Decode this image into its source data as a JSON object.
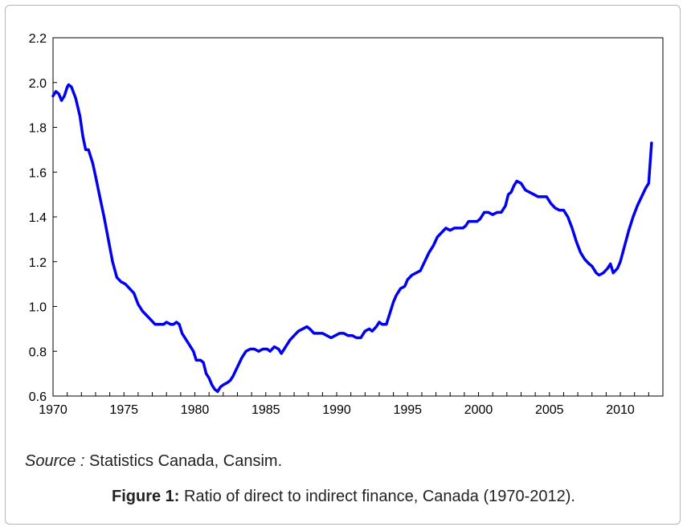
{
  "chart_data": {
    "type": "line",
    "title": "",
    "xlabel": "",
    "ylabel": "",
    "xlim": [
      1970,
      2013
    ],
    "ylim": [
      0.6,
      2.2
    ],
    "x_ticks": [
      1970,
      1975,
      1980,
      1985,
      1990,
      1995,
      2000,
      2005,
      2010
    ],
    "y_ticks": [
      "0.6",
      "0.8",
      "1.0",
      "1.2",
      "1.4",
      "1.6",
      "1.8",
      "2.0",
      "2.2"
    ],
    "grid": false,
    "legend": "none",
    "series": [
      {
        "color": "#0000ee",
        "points": [
          [
            1970.0,
            1.94
          ],
          [
            1970.2,
            1.96
          ],
          [
            1970.4,
            1.95
          ],
          [
            1970.6,
            1.92
          ],
          [
            1970.8,
            1.94
          ],
          [
            1971.0,
            1.98
          ],
          [
            1971.1,
            1.99
          ],
          [
            1971.3,
            1.98
          ],
          [
            1971.6,
            1.93
          ],
          [
            1971.9,
            1.85
          ],
          [
            1972.1,
            1.76
          ],
          [
            1972.3,
            1.7
          ],
          [
            1972.5,
            1.7
          ],
          [
            1972.8,
            1.64
          ],
          [
            1973.0,
            1.58
          ],
          [
            1973.3,
            1.49
          ],
          [
            1973.6,
            1.4
          ],
          [
            1973.9,
            1.3
          ],
          [
            1974.2,
            1.2
          ],
          [
            1974.5,
            1.13
          ],
          [
            1974.8,
            1.11
          ],
          [
            1975.1,
            1.1
          ],
          [
            1975.4,
            1.08
          ],
          [
            1975.7,
            1.06
          ],
          [
            1976.0,
            1.01
          ],
          [
            1976.3,
            0.98
          ],
          [
            1976.6,
            0.96
          ],
          [
            1976.9,
            0.94
          ],
          [
            1977.2,
            0.92
          ],
          [
            1977.5,
            0.92
          ],
          [
            1977.8,
            0.92
          ],
          [
            1978.0,
            0.93
          ],
          [
            1978.3,
            0.92
          ],
          [
            1978.5,
            0.92
          ],
          [
            1978.7,
            0.93
          ],
          [
            1978.9,
            0.92
          ],
          [
            1979.1,
            0.88
          ],
          [
            1979.4,
            0.85
          ],
          [
            1979.7,
            0.82
          ],
          [
            1979.9,
            0.8
          ],
          [
            1980.1,
            0.76
          ],
          [
            1980.4,
            0.76
          ],
          [
            1980.6,
            0.75
          ],
          [
            1980.8,
            0.7
          ],
          [
            1981.0,
            0.68
          ],
          [
            1981.2,
            0.65
          ],
          [
            1981.4,
            0.63
          ],
          [
            1981.6,
            0.62
          ],
          [
            1981.8,
            0.64
          ],
          [
            1982.0,
            0.65
          ],
          [
            1982.3,
            0.66
          ],
          [
            1982.5,
            0.67
          ],
          [
            1982.7,
            0.69
          ],
          [
            1983.0,
            0.73
          ],
          [
            1983.3,
            0.77
          ],
          [
            1983.6,
            0.8
          ],
          [
            1983.9,
            0.81
          ],
          [
            1984.2,
            0.81
          ],
          [
            1984.5,
            0.8
          ],
          [
            1984.8,
            0.81
          ],
          [
            1985.1,
            0.81
          ],
          [
            1985.3,
            0.8
          ],
          [
            1985.6,
            0.82
          ],
          [
            1985.9,
            0.81
          ],
          [
            1986.1,
            0.79
          ],
          [
            1986.4,
            0.82
          ],
          [
            1986.7,
            0.85
          ],
          [
            1987.0,
            0.87
          ],
          [
            1987.3,
            0.89
          ],
          [
            1987.6,
            0.9
          ],
          [
            1987.9,
            0.91
          ],
          [
            1988.1,
            0.9
          ],
          [
            1988.4,
            0.88
          ],
          [
            1988.7,
            0.88
          ],
          [
            1989.0,
            0.88
          ],
          [
            1989.3,
            0.87
          ],
          [
            1989.6,
            0.86
          ],
          [
            1989.9,
            0.87
          ],
          [
            1990.2,
            0.88
          ],
          [
            1990.5,
            0.88
          ],
          [
            1990.8,
            0.87
          ],
          [
            1991.1,
            0.87
          ],
          [
            1991.4,
            0.86
          ],
          [
            1991.7,
            0.86
          ],
          [
            1992.0,
            0.89
          ],
          [
            1992.3,
            0.9
          ],
          [
            1992.5,
            0.89
          ],
          [
            1992.8,
            0.91
          ],
          [
            1993.0,
            0.93
          ],
          [
            1993.2,
            0.92
          ],
          [
            1993.5,
            0.92
          ],
          [
            1993.8,
            0.98
          ],
          [
            1994.0,
            1.02
          ],
          [
            1994.2,
            1.05
          ],
          [
            1994.5,
            1.08
          ],
          [
            1994.8,
            1.09
          ],
          [
            1995.0,
            1.12
          ],
          [
            1995.3,
            1.14
          ],
          [
            1995.6,
            1.15
          ],
          [
            1995.9,
            1.16
          ],
          [
            1996.2,
            1.2
          ],
          [
            1996.5,
            1.24
          ],
          [
            1996.8,
            1.27
          ],
          [
            1997.1,
            1.31
          ],
          [
            1997.4,
            1.33
          ],
          [
            1997.7,
            1.35
          ],
          [
            1998.0,
            1.34
          ],
          [
            1998.3,
            1.35
          ],
          [
            1998.6,
            1.35
          ],
          [
            1998.9,
            1.35
          ],
          [
            1999.1,
            1.36
          ],
          [
            1999.3,
            1.38
          ],
          [
            1999.6,
            1.38
          ],
          [
            1999.9,
            1.38
          ],
          [
            2000.1,
            1.39
          ],
          [
            2000.4,
            1.42
          ],
          [
            2000.7,
            1.42
          ],
          [
            2001.0,
            1.41
          ],
          [
            2001.3,
            1.42
          ],
          [
            2001.6,
            1.42
          ],
          [
            2001.9,
            1.45
          ],
          [
            2002.1,
            1.5
          ],
          [
            2002.3,
            1.51
          ],
          [
            2002.5,
            1.54
          ],
          [
            2002.7,
            1.56
          ],
          [
            2003.0,
            1.55
          ],
          [
            2003.3,
            1.52
          ],
          [
            2003.6,
            1.51
          ],
          [
            2003.9,
            1.5
          ],
          [
            2004.2,
            1.49
          ],
          [
            2004.5,
            1.49
          ],
          [
            2004.8,
            1.49
          ],
          [
            2005.1,
            1.46
          ],
          [
            2005.4,
            1.44
          ],
          [
            2005.7,
            1.43
          ],
          [
            2006.0,
            1.43
          ],
          [
            2006.3,
            1.4
          ],
          [
            2006.6,
            1.35
          ],
          [
            2006.9,
            1.29
          ],
          [
            2007.2,
            1.24
          ],
          [
            2007.5,
            1.21
          ],
          [
            2007.8,
            1.19
          ],
          [
            2008.0,
            1.18
          ],
          [
            2008.3,
            1.15
          ],
          [
            2008.5,
            1.14
          ],
          [
            2008.8,
            1.15
          ],
          [
            2009.1,
            1.17
          ],
          [
            2009.3,
            1.19
          ],
          [
            2009.5,
            1.15
          ],
          [
            2009.8,
            1.17
          ],
          [
            2010.0,
            1.2
          ],
          [
            2010.3,
            1.27
          ],
          [
            2010.6,
            1.34
          ],
          [
            2010.9,
            1.4
          ],
          [
            2011.2,
            1.45
          ],
          [
            2011.5,
            1.49
          ],
          [
            2011.8,
            1.53
          ],
          [
            2012.0,
            1.55
          ],
          [
            2012.2,
            1.73
          ]
        ]
      }
    ]
  },
  "source": {
    "label": "Source :",
    "text": " Statistics Canada, Cansim."
  },
  "caption": {
    "label": "Figure 1:",
    "text": " Ratio of direct to indirect finance, Canada (1970-2012)."
  }
}
